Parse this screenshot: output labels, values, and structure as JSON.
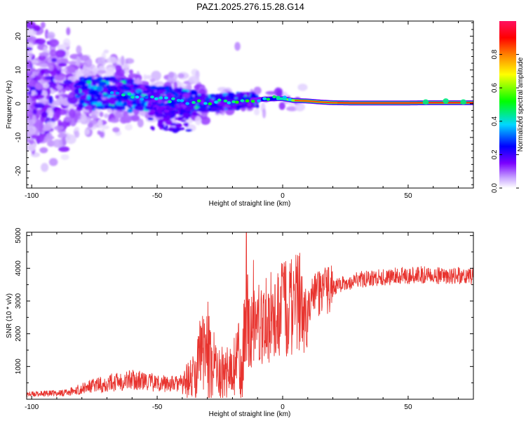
{
  "title": "PAZ1.2025.276.15.28.G14",
  "chart_data": [
    {
      "type": "heatmap",
      "name": "spectrogram",
      "xlabel": "Height of straight line (km)",
      "ylabel": "Frequency (Hz)",
      "xlim": [
        -102,
        76
      ],
      "ylim": [
        -25,
        24.5
      ],
      "xticks": [
        -100,
        -50,
        0,
        50
      ],
      "yticks": [
        -20,
        -10,
        0,
        10,
        20
      ],
      "ridge": [
        {
          "x": -66,
          "y": 3.0
        },
        {
          "x": -62,
          "y": 2.5
        },
        {
          "x": -57,
          "y": 2.0
        },
        {
          "x": -52,
          "y": 1.5
        },
        {
          "x": -47,
          "y": 1.2
        },
        {
          "x": -42,
          "y": 0.8
        },
        {
          "x": -37,
          "y": 0.4
        },
        {
          "x": -31,
          "y": 0.2
        },
        {
          "x": -25,
          "y": 0.5
        },
        {
          "x": -18,
          "y": 0.8
        },
        {
          "x": -13,
          "y": 1.0
        },
        {
          "x": -8,
          "y": 1.3
        },
        {
          "x": -3,
          "y": 1.5
        },
        {
          "x": 0,
          "y": 1.5
        },
        {
          "x": 4,
          "y": 1.0
        },
        {
          "x": 10,
          "y": 0.8
        },
        {
          "x": 15,
          "y": 0.5
        },
        {
          "x": 20,
          "y": 0.3
        },
        {
          "x": 30,
          "y": 0.2
        },
        {
          "x": 45,
          "y": 0.2
        },
        {
          "x": 60,
          "y": 0.3
        },
        {
          "x": 76,
          "y": 0.3
        }
      ],
      "colorbar": {
        "label": "Normalized spectral amplitude",
        "ticks": [
          0.0,
          0.2,
          0.4,
          0.6,
          0.8
        ]
      }
    },
    {
      "type": "line",
      "name": "snr",
      "xlabel": "Height of straight line (km)",
      "ylabel": "SNR (10 * v/v)",
      "xlim": [
        -102,
        76
      ],
      "ylim": [
        0,
        5100
      ],
      "xticks": [
        -100,
        -50,
        0,
        50
      ],
      "yticks": [
        1000,
        2000,
        3000,
        4000,
        5000
      ],
      "series": [
        {
          "name": "SNR",
          "color": "#e8342f",
          "points": [
            {
              "x": -102,
              "y": 150
            },
            {
              "x": -95,
              "y": 170
            },
            {
              "x": -90,
              "y": 180
            },
            {
              "x": -85,
              "y": 220
            },
            {
              "x": -80,
              "y": 320
            },
            {
              "x": -75,
              "y": 420
            },
            {
              "x": -70,
              "y": 480
            },
            {
              "x": -65,
              "y": 560
            },
            {
              "x": -60,
              "y": 600
            },
            {
              "x": -55,
              "y": 540
            },
            {
              "x": -50,
              "y": 500
            },
            {
              "x": -45,
              "y": 470
            },
            {
              "x": -40,
              "y": 480
            },
            {
              "x": -36,
              "y": 650
            },
            {
              "x": -33,
              "y": 1100
            },
            {
              "x": -30,
              "y": 1450
            },
            {
              "x": -27,
              "y": 1000
            },
            {
              "x": -24,
              "y": 900
            },
            {
              "x": -21,
              "y": 850
            },
            {
              "x": -19,
              "y": 1000
            },
            {
              "x": -17,
              "y": 1500
            },
            {
              "x": -15,
              "y": 1900
            },
            {
              "x": -10,
              "y": 2300
            },
            {
              "x": -5,
              "y": 2500
            },
            {
              "x": 0,
              "y": 2700
            },
            {
              "x": 5,
              "y": 2850
            },
            {
              "x": 10,
              "y": 3000
            },
            {
              "x": 15,
              "y": 3250
            },
            {
              "x": 20,
              "y": 3400
            },
            {
              "x": 25,
              "y": 3550
            },
            {
              "x": 30,
              "y": 3650
            },
            {
              "x": 35,
              "y": 3700
            },
            {
              "x": 40,
              "y": 3720
            },
            {
              "x": 45,
              "y": 3760
            },
            {
              "x": 50,
              "y": 3780
            },
            {
              "x": 55,
              "y": 3800
            },
            {
              "x": 60,
              "y": 3820
            },
            {
              "x": 65,
              "y": 3700
            },
            {
              "x": 70,
              "y": 3780
            },
            {
              "x": 76,
              "y": 3750
            }
          ],
          "peaks": [
            {
              "x": -14.5,
              "y": 5100
            },
            {
              "x": -14.0,
              "y": 3800
            },
            {
              "x": -3,
              "y": 3500
            },
            {
              "x": -29,
              "y": 2100
            },
            {
              "x": 58,
              "y": 4000
            }
          ]
        }
      ]
    }
  ]
}
